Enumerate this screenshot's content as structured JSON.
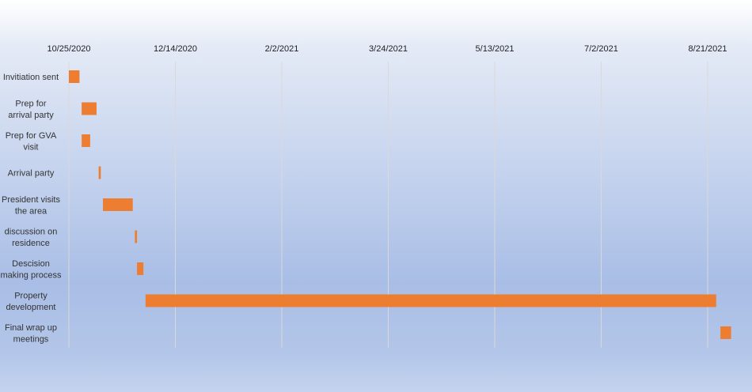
{
  "chart_data": {
    "type": "bar",
    "orientation": "horizontal",
    "title": "",
    "xlabel": "",
    "ylabel": "",
    "x_ticks": [
      "10/25/2020",
      "12/14/2020",
      "2/2/2021",
      "3/24/2021",
      "5/13/2021",
      "7/2/2021",
      "8/21/2021"
    ],
    "xlim": [
      "10/25/2020",
      "9/10/2021"
    ],
    "grid": true,
    "legend": "none",
    "bar_color": "#ED7D31",
    "categories": [
      "Invitiation sent",
      "Prep for arrival party",
      "Prep for GVA visit",
      "Arrival party",
      "President visits the area",
      "discussion on residence",
      "Descision making process",
      "Property development",
      "Final wrap up meetings"
    ],
    "category_lines": [
      [
        "Invitiation sent"
      ],
      [
        "Prep for",
        "arrival party"
      ],
      [
        "Prep for GVA",
        "visit"
      ],
      [
        "Arrival party"
      ],
      [
        "President visits",
        "the area"
      ],
      [
        "discussion on",
        "residence"
      ],
      [
        "Descision",
        "making process"
      ],
      [
        "Property",
        "development"
      ],
      [
        "Final wrap up",
        "meetings"
      ]
    ],
    "series": [
      {
        "start": [
          "10/25/2020",
          "10/31/2020",
          "10/31/2020",
          "11/8/2020",
          "11/10/2020",
          "11/25/2020",
          "11/26/2020",
          "11/30/2020",
          "8/27/2021"
        ],
        "end": [
          "10/30/2020",
          "11/7/2020",
          "11/4/2020",
          "11/9/2020",
          "11/24/2020",
          "11/26/2020",
          "11/29/2020",
          "8/25/2021",
          "9/1/2021"
        ]
      }
    ]
  }
}
